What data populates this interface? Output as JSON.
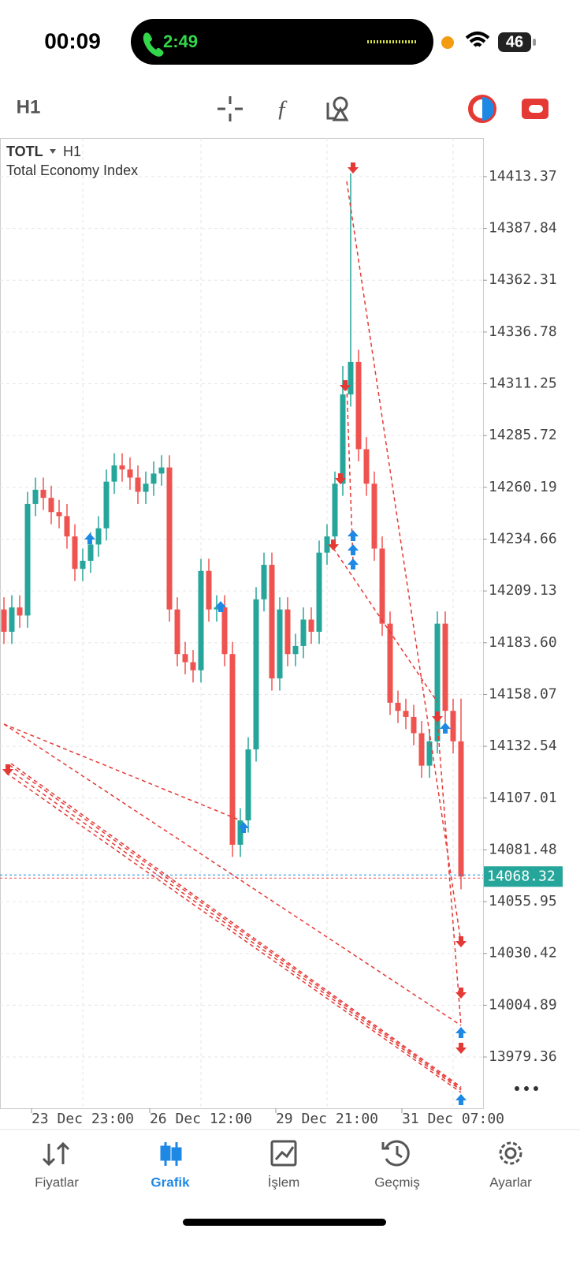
{
  "status_bar": {
    "time": "00:09",
    "call_time": "2:49",
    "battery": "46"
  },
  "toolbar": {
    "timeframe": "H1"
  },
  "chart_data": {
    "type": "candlestick",
    "symbol": "TOTL",
    "timeframe": "H1",
    "title": "Total Economy Index",
    "categories": [
      null,
      null,
      null,
      null,
      null,
      null,
      null,
      null,
      null,
      null,
      "23 Dec 23:00",
      null,
      null,
      null,
      null,
      null,
      null,
      null,
      null,
      null,
      null,
      null,
      null,
      null,
      null,
      "26 Dec 12:00",
      null,
      null,
      null,
      null,
      null,
      null,
      null,
      null,
      null,
      null,
      null,
      null,
      null,
      null,
      null,
      "29 Dec 21:00",
      null,
      null,
      null,
      null,
      null,
      null,
      null,
      null,
      null,
      null,
      null,
      null,
      null,
      null,
      null,
      "31 Dec 07:00",
      null
    ],
    "open": [
      14200,
      14189,
      14201,
      14197,
      14252,
      14259,
      14255,
      14248,
      14246,
      14236,
      14220,
      14224,
      14232,
      14240,
      14263,
      14271,
      14269,
      14265,
      14258,
      14262,
      14267,
      14270,
      14200,
      14178,
      14174,
      14170,
      14219,
      14200,
      14201,
      14178,
      14084,
      14096,
      14131,
      14205,
      14222,
      14166,
      14200,
      14178,
      14182,
      14195,
      14189,
      14228,
      14236,
      14262,
      14306,
      14322,
      14279,
      14262,
      14230,
      14193,
      14154,
      14150,
      14147,
      14139,
      14123,
      14135,
      14193,
      14150,
      14135
    ],
    "high": [
      14206,
      14207,
      14207,
      14258,
      14265,
      14265,
      14261,
      14254,
      14252,
      14242,
      14230,
      14238,
      14246,
      14269,
      14277,
      14277,
      14275,
      14271,
      14268,
      14273,
      14276,
      14276,
      14206,
      14184,
      14180,
      14225,
      14225,
      14207,
      14207,
      14184,
      14102,
      14137,
      14211,
      14228,
      14228,
      14206,
      14206,
      14188,
      14201,
      14201,
      14234,
      14242,
      14268,
      14320,
      14415,
      14328,
      14285,
      14268,
      14236,
      14199,
      14160,
      14156,
      14153,
      14145,
      14141,
      14199,
      14199,
      14156,
      14156
    ],
    "low": [
      14183,
      14183,
      14191,
      14191,
      14246,
      14249,
      14242,
      14240,
      14230,
      14214,
      14214,
      14218,
      14226,
      14234,
      14257,
      14263,
      14259,
      14252,
      14252,
      14256,
      14261,
      14194,
      14172,
      14168,
      14164,
      14164,
      14194,
      14194,
      14172,
      14078,
      14078,
      14090,
      14125,
      14199,
      14160,
      14160,
      14172,
      14172,
      14176,
      14183,
      14183,
      14222,
      14230,
      14256,
      14300,
      14273,
      14256,
      14224,
      14187,
      14148,
      14144,
      14141,
      14133,
      14117,
      14117,
      14129,
      14144,
      14129,
      14062
    ],
    "close": [
      14189,
      14201,
      14197,
      14252,
      14259,
      14255,
      14248,
      14246,
      14236,
      14220,
      14224,
      14232,
      14240,
      14263,
      14271,
      14269,
      14265,
      14258,
      14262,
      14267,
      14270,
      14200,
      14178,
      14174,
      14170,
      14219,
      14200,
      14201,
      14178,
      14084,
      14096,
      14131,
      14205,
      14222,
      14166,
      14200,
      14178,
      14182,
      14195,
      14189,
      14228,
      14236,
      14262,
      14306,
      14322,
      14279,
      14262,
      14230,
      14193,
      14154,
      14150,
      14147,
      14139,
      14123,
      14135,
      14193,
      14150,
      14135,
      14068.32
    ],
    "ylim": [
      13954.1,
      14432.4
    ],
    "yticks": [
      14413.37,
      14387.84,
      14362.31,
      14336.78,
      14311.25,
      14285.72,
      14260.19,
      14234.66,
      14209.13,
      {
        "value": 14183.6,
        "label": "14183.60"
      },
      14158.07,
      14132.54,
      14107.01,
      14081.48,
      14055.95,
      14030.42,
      14004.89,
      13979.36
    ],
    "current_price": 14068.32,
    "up_color": "#26a69a",
    "down_color": "#ef5350",
    "grid": true
  },
  "tab_bar": {
    "tabs": [
      "Fiyatlar",
      "Grafik",
      "İşlem",
      "Geçmiş",
      "Ayarlar"
    ],
    "active": 1
  }
}
